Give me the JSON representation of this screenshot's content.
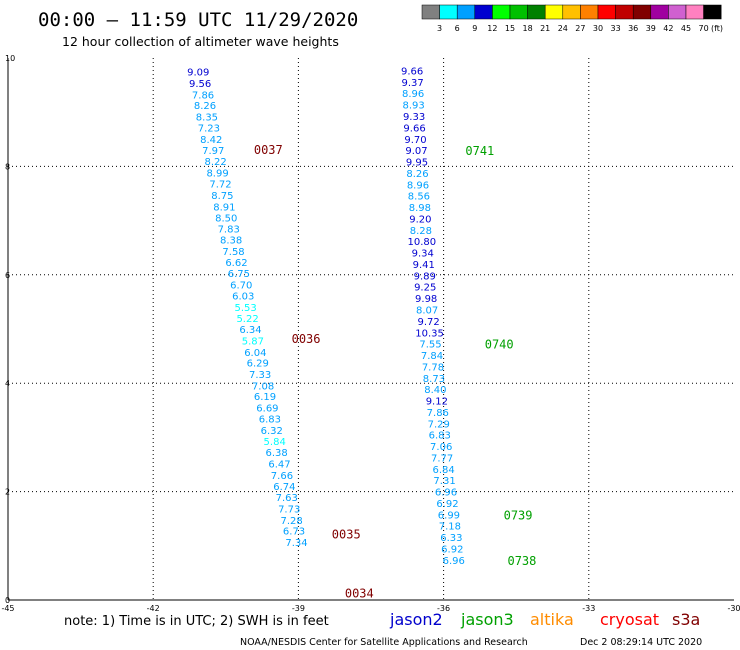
{
  "header": {
    "title": "00:00 – 11:59 UTC 11/29/2020",
    "subtitle": "12 hour collection of altimeter wave heights"
  },
  "colorbar": {
    "labels": [
      "3",
      "6",
      "9",
      "12",
      "15",
      "18",
      "21",
      "24",
      "27",
      "30",
      "33",
      "36",
      "39",
      "42",
      "45",
      "70"
    ],
    "unit": "(ft)",
    "colors": [
      "#808080",
      "#00ffff",
      "#00a0ff",
      "#0000d0",
      "#00ff00",
      "#00c000",
      "#008000",
      "#ffff00",
      "#ffc000",
      "#ff8000",
      "#ff0000",
      "#c00000",
      "#800000",
      "#a000a0",
      "#d060d0",
      "#ff80c0",
      "#000000"
    ]
  },
  "footer": {
    "note": "note: 1) Time is in UTC; 2) SWH is in feet",
    "credit": "NOAA/NESDIS Center for Satellite Applications and Research",
    "timestamp": "Dec  2 08:29:14 UTC 2020"
  },
  "legend": {
    "items": [
      {
        "label": "jason2",
        "color": "#0000cc"
      },
      {
        "label": "jason3",
        "color": "#00a000"
      },
      {
        "label": "altika",
        "color": "#ff8c00"
      },
      {
        "label": "cryosat",
        "color": "#ff0000"
      },
      {
        "label": "s3a",
        "color": "#800000"
      }
    ]
  },
  "chart_data": {
    "type": "scatter",
    "xlim": [
      -45,
      -30
    ],
    "ylim": [
      0,
      10
    ],
    "xticks": [
      "-45",
      "-42",
      "-39",
      "-36",
      "-33",
      "-30"
    ],
    "yticks": [
      "0",
      "2",
      "4",
      "6",
      "8",
      "10"
    ],
    "grid": true,
    "series": [
      {
        "name": "s3a",
        "color": "#800000",
        "points": [
          {
            "x": -41.07,
            "y": 9.75,
            "v": "9.09"
          },
          {
            "x": -41.03,
            "y": 9.54,
            "v": "9.56"
          },
          {
            "x": -40.97,
            "y": 9.33,
            "v": "7.86"
          },
          {
            "x": -40.93,
            "y": 9.13,
            "v": "8.26"
          },
          {
            "x": -40.89,
            "y": 8.92,
            "v": "8.35"
          },
          {
            "x": -40.85,
            "y": 8.72,
            "v": "7.23"
          },
          {
            "x": -40.8,
            "y": 8.51,
            "v": "8.42"
          },
          {
            "x": -40.76,
            "y": 8.3,
            "v": "7.97"
          },
          {
            "x": -40.71,
            "y": 8.1,
            "v": "8.22"
          },
          {
            "x": -40.67,
            "y": 7.89,
            "v": "8.99"
          },
          {
            "x": -40.61,
            "y": 7.68,
            "v": "7.72"
          },
          {
            "x": -40.57,
            "y": 7.47,
            "v": "8.75"
          },
          {
            "x": -40.53,
            "y": 7.26,
            "v": "8.91"
          },
          {
            "x": -40.49,
            "y": 7.06,
            "v": "8.50"
          },
          {
            "x": -40.44,
            "y": 6.85,
            "v": "7.83"
          },
          {
            "x": -40.39,
            "y": 6.65,
            "v": "8.38"
          },
          {
            "x": -40.34,
            "y": 6.44,
            "v": "7.58"
          },
          {
            "x": -40.28,
            "y": 6.24,
            "v": "6.62"
          },
          {
            "x": -40.23,
            "y": 6.03,
            "v": "6.75"
          },
          {
            "x": -40.18,
            "y": 5.82,
            "v": "6.70"
          },
          {
            "x": -40.14,
            "y": 5.62,
            "v": "6.03"
          },
          {
            "x": -40.09,
            "y": 5.41,
            "v": "5.53"
          },
          {
            "x": -40.05,
            "y": 5.2,
            "v": "5.22"
          },
          {
            "x": -39.99,
            "y": 5.0,
            "v": "6.34"
          },
          {
            "x": -39.94,
            "y": 4.79,
            "v": "5.87"
          },
          {
            "x": -39.89,
            "y": 4.58,
            "v": "6.04"
          },
          {
            "x": -39.84,
            "y": 4.38,
            "v": "6.29"
          },
          {
            "x": -39.79,
            "y": 4.17,
            "v": "7.33"
          },
          {
            "x": -39.73,
            "y": 3.96,
            "v": "7.08"
          },
          {
            "x": -39.69,
            "y": 3.76,
            "v": "6.19"
          },
          {
            "x": -39.64,
            "y": 3.55,
            "v": "6.69"
          },
          {
            "x": -39.59,
            "y": 3.35,
            "v": "6.83"
          },
          {
            "x": -39.55,
            "y": 3.14,
            "v": "6.32"
          },
          {
            "x": -39.49,
            "y": 2.93,
            "v": "5.84"
          },
          {
            "x": -39.45,
            "y": 2.73,
            "v": "6.38"
          },
          {
            "x": -39.39,
            "y": 2.52,
            "v": "6.47"
          },
          {
            "x": -39.34,
            "y": 2.31,
            "v": "7.66"
          },
          {
            "x": -39.29,
            "y": 2.1,
            "v": "6.74"
          },
          {
            "x": -39.24,
            "y": 1.9,
            "v": "7.63"
          },
          {
            "x": -39.19,
            "y": 1.69,
            "v": "7.73"
          },
          {
            "x": -39.14,
            "y": 1.48,
            "v": "7.28"
          },
          {
            "x": -39.09,
            "y": 1.28,
            "v": "6.73"
          },
          {
            "x": -39.04,
            "y": 1.07,
            "v": "7.34"
          }
        ],
        "time_labels": [
          {
            "x": -39.92,
            "y": 8.32,
            "label": "0037"
          },
          {
            "x": -39.14,
            "y": 4.83,
            "label": "0036"
          },
          {
            "x": -38.31,
            "y": 1.23,
            "label": "0035"
          },
          {
            "x": -38.04,
            "y": 0.14,
            "label": "0034"
          }
        ]
      },
      {
        "name": "jason3",
        "color": "#00a000",
        "points": [
          {
            "x": -36.65,
            "y": 9.77,
            "v": "9.66"
          },
          {
            "x": -36.64,
            "y": 9.56,
            "v": "9.37"
          },
          {
            "x": -36.63,
            "y": 9.35,
            "v": "8.96"
          },
          {
            "x": -36.62,
            "y": 9.14,
            "v": "8.93"
          },
          {
            "x": -36.61,
            "y": 8.93,
            "v": "9.33"
          },
          {
            "x": -36.6,
            "y": 8.72,
            "v": "9.66"
          },
          {
            "x": -36.58,
            "y": 8.51,
            "v": "9.70"
          },
          {
            "x": -36.56,
            "y": 8.3,
            "v": "9.07"
          },
          {
            "x": -36.55,
            "y": 8.09,
            "v": "9.95"
          },
          {
            "x": -36.54,
            "y": 7.88,
            "v": "8.26"
          },
          {
            "x": -36.53,
            "y": 7.67,
            "v": "8.96"
          },
          {
            "x": -36.51,
            "y": 7.46,
            "v": "8.56"
          },
          {
            "x": -36.49,
            "y": 7.25,
            "v": "8.98"
          },
          {
            "x": -36.48,
            "y": 7.04,
            "v": "9.20"
          },
          {
            "x": -36.47,
            "y": 6.83,
            "v": "8.28"
          },
          {
            "x": -36.45,
            "y": 6.62,
            "v": "10.80"
          },
          {
            "x": -36.43,
            "y": 6.41,
            "v": "9.34"
          },
          {
            "x": -36.41,
            "y": 6.2,
            "v": "9.41"
          },
          {
            "x": -36.39,
            "y": 5.99,
            "v": "9.89"
          },
          {
            "x": -36.38,
            "y": 5.78,
            "v": "9.25"
          },
          {
            "x": -36.36,
            "y": 5.57,
            "v": "9.98"
          },
          {
            "x": -36.34,
            "y": 5.36,
            "v": "8.07"
          },
          {
            "x": -36.31,
            "y": 5.15,
            "v": "9.72"
          },
          {
            "x": -36.29,
            "y": 4.94,
            "v": "10.35"
          },
          {
            "x": -36.27,
            "y": 4.73,
            "v": "7.55"
          },
          {
            "x": -36.24,
            "y": 4.52,
            "v": "7.84"
          },
          {
            "x": -36.22,
            "y": 4.31,
            "v": "7.78"
          },
          {
            "x": -36.2,
            "y": 4.1,
            "v": "8.73"
          },
          {
            "x": -36.17,
            "y": 3.89,
            "v": "8.40"
          },
          {
            "x": -36.14,
            "y": 3.68,
            "v": "9.12"
          },
          {
            "x": -36.12,
            "y": 3.47,
            "v": "7.86"
          },
          {
            "x": -36.1,
            "y": 3.26,
            "v": "7.29"
          },
          {
            "x": -36.08,
            "y": 3.05,
            "v": "6.83"
          },
          {
            "x": -36.05,
            "y": 2.84,
            "v": "7.06"
          },
          {
            "x": -36.03,
            "y": 2.63,
            "v": "7.77"
          },
          {
            "x": -36.0,
            "y": 2.42,
            "v": "6.84"
          },
          {
            "x": -35.98,
            "y": 2.21,
            "v": "7.31"
          },
          {
            "x": -35.95,
            "y": 2.0,
            "v": "6.96"
          },
          {
            "x": -35.92,
            "y": 1.79,
            "v": "6.92"
          },
          {
            "x": -35.89,
            "y": 1.58,
            "v": "6.99"
          },
          {
            "x": -35.87,
            "y": 1.37,
            "v": "7.18"
          },
          {
            "x": -35.84,
            "y": 1.16,
            "v": "6.33"
          },
          {
            "x": -35.82,
            "y": 0.95,
            "v": "6.92"
          },
          {
            "x": -35.79,
            "y": 0.74,
            "v": "6.96"
          }
        ],
        "time_labels": [
          {
            "x": -35.55,
            "y": 8.3,
            "label": "0741"
          },
          {
            "x": -35.15,
            "y": 4.73,
            "label": "0740"
          },
          {
            "x": -34.76,
            "y": 1.58,
            "label": "0739"
          },
          {
            "x": -34.68,
            "y": 0.74,
            "label": "0738"
          }
        ]
      }
    ]
  }
}
